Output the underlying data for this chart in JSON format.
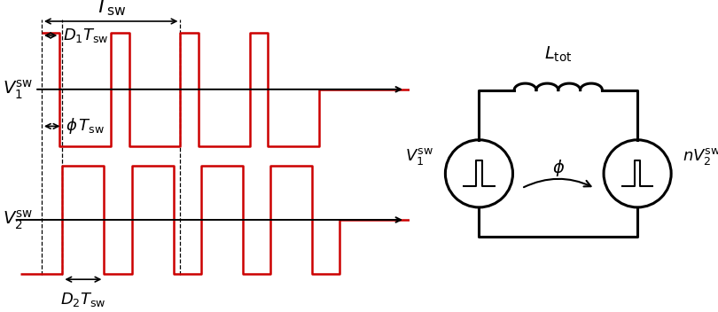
{
  "waveform_color": "#CC0000",
  "line_color": "#000000",
  "background_color": "#ffffff",
  "fig_width": 8.1,
  "fig_height": 3.52,
  "dpi": 100,
  "phi": 0.15,
  "D1": 0.13,
  "D2": 0.3,
  "Tsw": 1.0,
  "fs_label": 14,
  "fs_annot": 13,
  "fs_circuit": 13
}
